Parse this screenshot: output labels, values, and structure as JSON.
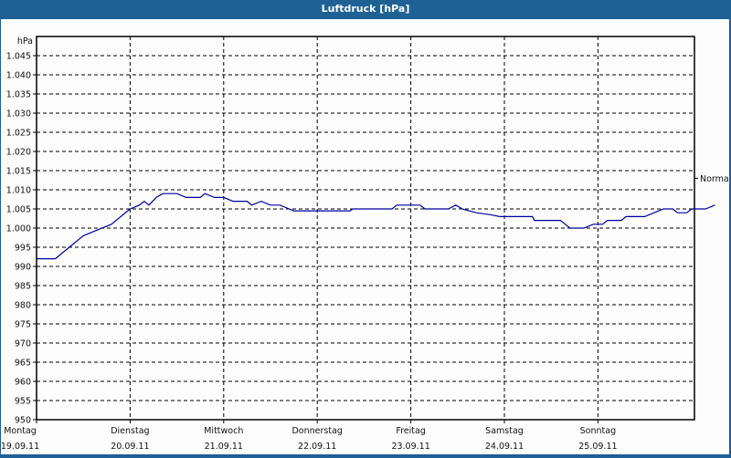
{
  "window": {
    "title": "Luftdruck [hPa]"
  },
  "chart_data": {
    "type": "line",
    "title": "Luftdruck [hPa]",
    "ylabel": "hPa",
    "xlabel": "",
    "ylim": [
      950,
      1045
    ],
    "yticks": [
      "1.045",
      "1.040",
      "1.035",
      "1.030",
      "1.025",
      "1.020",
      "1.015",
      "1.010",
      "1.005",
      "1.000",
      "995",
      "990",
      "985",
      "980",
      "975",
      "970",
      "965",
      "960",
      "955",
      "950"
    ],
    "x_days": [
      {
        "day": "Montag",
        "date": "19.09.11"
      },
      {
        "day": "Dienstag",
        "date": "20.09.11"
      },
      {
        "day": "Mittwoch",
        "date": "21.09.11"
      },
      {
        "day": "Donnerstag",
        "date": "22.09.11"
      },
      {
        "day": "Freitag",
        "date": "23.09.11"
      },
      {
        "day": "Samstag",
        "date": "24.09.11"
      },
      {
        "day": "Sonntag",
        "date": "25.09.11"
      }
    ],
    "grid": true,
    "reference_line": {
      "label": "Normal",
      "value": 1013
    },
    "series": [
      {
        "name": "Luftdruck",
        "color": "#0000a0",
        "points": [
          [
            0.0,
            992
          ],
          [
            0.2,
            992
          ],
          [
            0.25,
            993
          ],
          [
            0.35,
            995
          ],
          [
            0.5,
            998
          ],
          [
            0.6,
            999
          ],
          [
            0.8,
            1001
          ],
          [
            0.9,
            1003
          ],
          [
            1.0,
            1005
          ],
          [
            1.05,
            1005.5
          ],
          [
            1.1,
            1006
          ],
          [
            1.15,
            1007
          ],
          [
            1.2,
            1006
          ],
          [
            1.28,
            1008
          ],
          [
            1.35,
            1009
          ],
          [
            1.5,
            1009
          ],
          [
            1.6,
            1008
          ],
          [
            1.75,
            1008
          ],
          [
            1.8,
            1009
          ],
          [
            1.9,
            1008
          ],
          [
            2.0,
            1008
          ],
          [
            2.1,
            1007
          ],
          [
            2.25,
            1007
          ],
          [
            2.3,
            1006
          ],
          [
            2.4,
            1007
          ],
          [
            2.5,
            1006
          ],
          [
            2.6,
            1006
          ],
          [
            2.7,
            1005
          ],
          [
            2.75,
            1004.5
          ],
          [
            3.0,
            1004.5
          ],
          [
            3.35,
            1004.5
          ],
          [
            3.38,
            1005
          ],
          [
            3.8,
            1005
          ],
          [
            3.85,
            1006
          ],
          [
            4.1,
            1006
          ],
          [
            4.15,
            1005
          ],
          [
            4.4,
            1005
          ],
          [
            4.48,
            1006
          ],
          [
            4.55,
            1005
          ],
          [
            4.7,
            1004
          ],
          [
            4.85,
            1003.5
          ],
          [
            4.95,
            1003
          ],
          [
            5.3,
            1003
          ],
          [
            5.32,
            1002
          ],
          [
            5.6,
            1002
          ],
          [
            5.65,
            1001
          ],
          [
            5.7,
            1000
          ],
          [
            5.85,
            1000
          ],
          [
            5.95,
            1001
          ],
          [
            6.05,
            1001
          ],
          [
            6.1,
            1002
          ],
          [
            6.25,
            1002
          ],
          [
            6.3,
            1003
          ],
          [
            6.5,
            1003
          ],
          [
            6.6,
            1004
          ],
          [
            6.7,
            1005
          ],
          [
            6.8,
            1005
          ],
          [
            6.85,
            1004
          ],
          [
            6.95,
            1004
          ],
          [
            7.0,
            1005
          ],
          [
            7.15,
            1005
          ],
          [
            7.25,
            1006
          ]
        ]
      }
    ]
  }
}
